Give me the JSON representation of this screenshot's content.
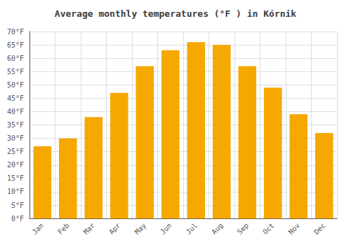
{
  "chart_data": {
    "type": "bar",
    "title": "Average monthly temperatures (°F ) in Kórnik",
    "categories": [
      "Jan",
      "Feb",
      "Mar",
      "Apr",
      "May",
      "Jun",
      "Jul",
      "Aug",
      "Sep",
      "Oct",
      "Nov",
      "Dec"
    ],
    "values": [
      27,
      30,
      38,
      47,
      57,
      63,
      66,
      65,
      57,
      49,
      39,
      32
    ],
    "color": "#F5A800",
    "ylim": [
      0,
      70
    ],
    "yticks": [
      {
        "value": 0,
        "label": "0°F"
      },
      {
        "value": 5,
        "label": "5°F"
      },
      {
        "value": 10,
        "label": "10°F"
      },
      {
        "value": 15,
        "label": "15°F"
      },
      {
        "value": 20,
        "label": "20°F"
      },
      {
        "value": 25,
        "label": "25°F"
      },
      {
        "value": 30,
        "label": "30°F"
      },
      {
        "value": 35,
        "label": "35°F"
      },
      {
        "value": 40,
        "label": "40°F"
      },
      {
        "value": 45,
        "label": "45°F"
      },
      {
        "value": 50,
        "label": "50°F"
      },
      {
        "value": 55,
        "label": "55°F"
      },
      {
        "value": 60,
        "label": "60°F"
      },
      {
        "value": 65,
        "label": "65°F"
      },
      {
        "value": 70,
        "label": "70°F"
      }
    ],
    "grid": true
  }
}
